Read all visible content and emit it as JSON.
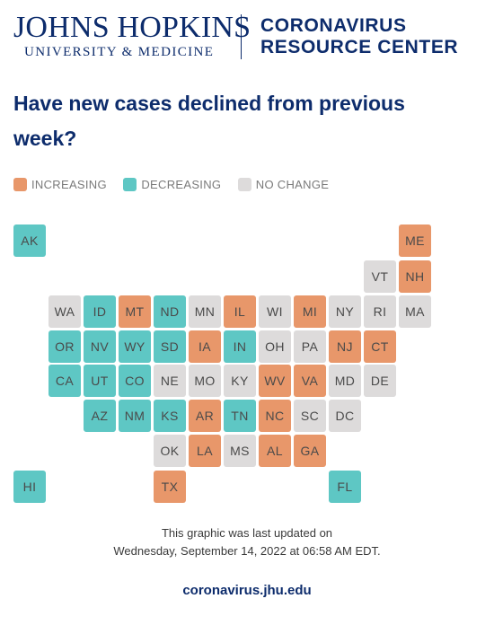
{
  "header": {
    "jh_name": "JOHNS HOPKINS",
    "jh_sub": "UNIVERSITY & MEDICINE",
    "crc_line1": "CORONAVIRUS",
    "crc_line2": "RESOURCE CENTER"
  },
  "title": "Have new cases declined from previous week?",
  "colors": {
    "increasing": "#e8976a",
    "decreasing": "#5ec7c4",
    "no_change": "#dddbdb"
  },
  "legend": {
    "increasing": "INCREASING",
    "decreasing": "DECREASING",
    "no_change": "NO CHANGE"
  },
  "map": {
    "states": [
      {
        "abbr": "AK",
        "status": "decreasing",
        "row": 0,
        "col": 0
      },
      {
        "abbr": "ME",
        "status": "increasing",
        "row": 0,
        "col": 11
      },
      {
        "abbr": "VT",
        "status": "no_change",
        "row": 1,
        "col": 10
      },
      {
        "abbr": "NH",
        "status": "increasing",
        "row": 1,
        "col": 11
      },
      {
        "abbr": "WA",
        "status": "no_change",
        "row": 2,
        "col": 1
      },
      {
        "abbr": "ID",
        "status": "decreasing",
        "row": 2,
        "col": 2
      },
      {
        "abbr": "MT",
        "status": "increasing",
        "row": 2,
        "col": 3
      },
      {
        "abbr": "ND",
        "status": "decreasing",
        "row": 2,
        "col": 4
      },
      {
        "abbr": "MN",
        "status": "no_change",
        "row": 2,
        "col": 5
      },
      {
        "abbr": "IL",
        "status": "increasing",
        "row": 2,
        "col": 6
      },
      {
        "abbr": "WI",
        "status": "no_change",
        "row": 2,
        "col": 7
      },
      {
        "abbr": "MI",
        "status": "increasing",
        "row": 2,
        "col": 8
      },
      {
        "abbr": "NY",
        "status": "no_change",
        "row": 2,
        "col": 9
      },
      {
        "abbr": "RI",
        "status": "no_change",
        "row": 2,
        "col": 10
      },
      {
        "abbr": "MA",
        "status": "no_change",
        "row": 2,
        "col": 11
      },
      {
        "abbr": "OR",
        "status": "decreasing",
        "row": 3,
        "col": 1
      },
      {
        "abbr": "NV",
        "status": "decreasing",
        "row": 3,
        "col": 2
      },
      {
        "abbr": "WY",
        "status": "decreasing",
        "row": 3,
        "col": 3
      },
      {
        "abbr": "SD",
        "status": "decreasing",
        "row": 3,
        "col": 4
      },
      {
        "abbr": "IA",
        "status": "increasing",
        "row": 3,
        "col": 5
      },
      {
        "abbr": "IN",
        "status": "decreasing",
        "row": 3,
        "col": 6
      },
      {
        "abbr": "OH",
        "status": "no_change",
        "row": 3,
        "col": 7
      },
      {
        "abbr": "PA",
        "status": "no_change",
        "row": 3,
        "col": 8
      },
      {
        "abbr": "NJ",
        "status": "increasing",
        "row": 3,
        "col": 9
      },
      {
        "abbr": "CT",
        "status": "increasing",
        "row": 3,
        "col": 10
      },
      {
        "abbr": "CA",
        "status": "decreasing",
        "row": 4,
        "col": 1
      },
      {
        "abbr": "UT",
        "status": "decreasing",
        "row": 4,
        "col": 2
      },
      {
        "abbr": "CO",
        "status": "decreasing",
        "row": 4,
        "col": 3
      },
      {
        "abbr": "NE",
        "status": "no_change",
        "row": 4,
        "col": 4
      },
      {
        "abbr": "MO",
        "status": "no_change",
        "row": 4,
        "col": 5
      },
      {
        "abbr": "KY",
        "status": "no_change",
        "row": 4,
        "col": 6
      },
      {
        "abbr": "WV",
        "status": "increasing",
        "row": 4,
        "col": 7
      },
      {
        "abbr": "VA",
        "status": "increasing",
        "row": 4,
        "col": 8
      },
      {
        "abbr": "MD",
        "status": "no_change",
        "row": 4,
        "col": 9
      },
      {
        "abbr": "DE",
        "status": "no_change",
        "row": 4,
        "col": 10
      },
      {
        "abbr": "AZ",
        "status": "decreasing",
        "row": 5,
        "col": 2
      },
      {
        "abbr": "NM",
        "status": "decreasing",
        "row": 5,
        "col": 3
      },
      {
        "abbr": "KS",
        "status": "decreasing",
        "row": 5,
        "col": 4
      },
      {
        "abbr": "AR",
        "status": "increasing",
        "row": 5,
        "col": 5
      },
      {
        "abbr": "TN",
        "status": "decreasing",
        "row": 5,
        "col": 6
      },
      {
        "abbr": "NC",
        "status": "increasing",
        "row": 5,
        "col": 7
      },
      {
        "abbr": "SC",
        "status": "no_change",
        "row": 5,
        "col": 8
      },
      {
        "abbr": "DC",
        "status": "no_change",
        "row": 5,
        "col": 9
      },
      {
        "abbr": "OK",
        "status": "no_change",
        "row": 6,
        "col": 4
      },
      {
        "abbr": "LA",
        "status": "increasing",
        "row": 6,
        "col": 5
      },
      {
        "abbr": "MS",
        "status": "no_change",
        "row": 6,
        "col": 6
      },
      {
        "abbr": "AL",
        "status": "increasing",
        "row": 6,
        "col": 7
      },
      {
        "abbr": "GA",
        "status": "increasing",
        "row": 6,
        "col": 8
      },
      {
        "abbr": "HI",
        "status": "decreasing",
        "row": 7,
        "col": 0
      },
      {
        "abbr": "TX",
        "status": "increasing",
        "row": 7,
        "col": 4
      },
      {
        "abbr": "FL",
        "status": "decreasing",
        "row": 7,
        "col": 9
      }
    ]
  },
  "footer": {
    "updated_line1": "This graphic was last updated on",
    "updated_line2": "Wednesday, September 14, 2022 at 06:58 AM EDT.",
    "link": "coronavirus.jhu.edu"
  }
}
